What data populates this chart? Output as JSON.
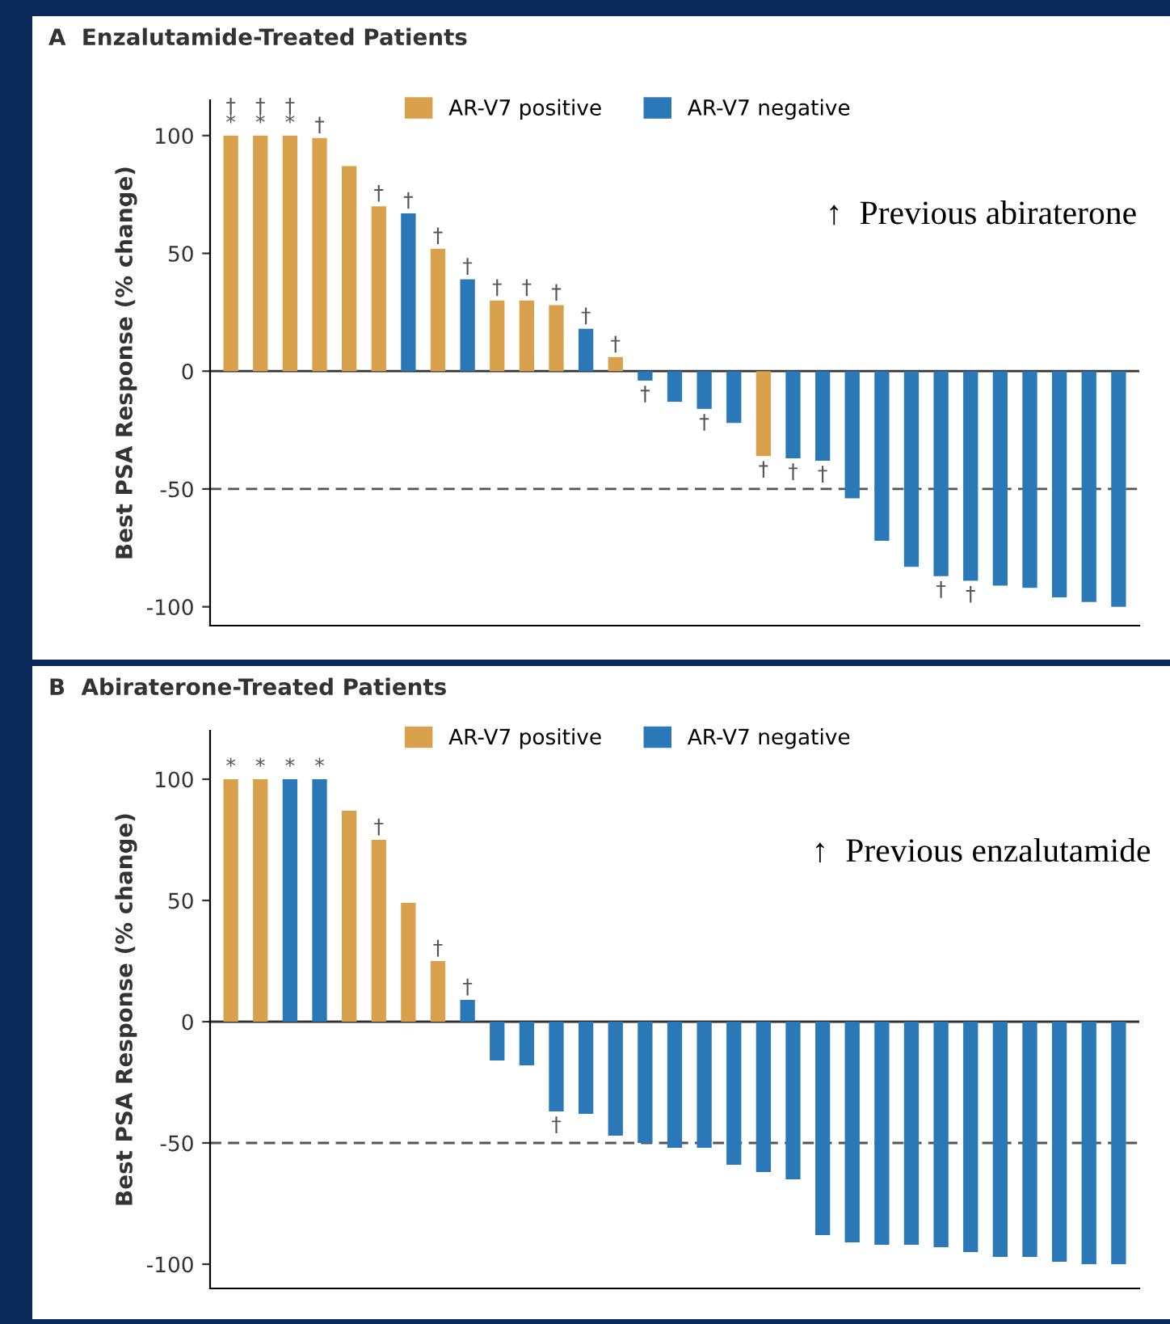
{
  "chart_data": [
    {
      "type": "bar",
      "title": "A  Enzalutamide-Treated Patients",
      "ylabel": "Best PSA Response (% change)",
      "categories": [
        null,
        null,
        null,
        null,
        null,
        null,
        null,
        null,
        null,
        null,
        null,
        null,
        null,
        null,
        null,
        null,
        null,
        null,
        null,
        null,
        null,
        null,
        null,
        null,
        null,
        null,
        null,
        null,
        null,
        null,
        null
      ],
      "series": [
        {
          "name": "AR-V7 positive",
          "color": "#d9a14b",
          "values": [
            100,
            100,
            100,
            99,
            87,
            70,
            null,
            52,
            null,
            30,
            30,
            28,
            null,
            6,
            null,
            null,
            null,
            null,
            -36,
            null,
            null,
            null,
            null,
            null,
            null,
            null,
            null,
            null,
            null,
            null,
            null
          ],
          "value_labels": [
            "†\n*",
            "†\n*",
            "†\n*",
            "†",
            null,
            "†",
            null,
            "†",
            null,
            "†",
            "†",
            "†",
            null,
            "†",
            null,
            null,
            null,
            null,
            "†",
            null,
            null,
            null,
            null,
            null,
            null,
            null,
            null,
            null,
            null,
            null,
            null
          ]
        },
        {
          "name": "AR-V7 negative",
          "color": "#2b78b8",
          "values": [
            null,
            null,
            null,
            null,
            null,
            null,
            67,
            null,
            39,
            null,
            null,
            null,
            18,
            null,
            -4,
            -13,
            -16,
            -22,
            null,
            -37,
            -38,
            -54,
            -72,
            -83,
            -87,
            -89,
            -91,
            -92,
            -96,
            -98,
            -100
          ],
          "value_labels": [
            null,
            null,
            null,
            null,
            null,
            null,
            "†",
            null,
            "†",
            null,
            null,
            null,
            "†",
            null,
            "†",
            null,
            "†",
            null,
            null,
            "†",
            "†",
            null,
            null,
            null,
            "†",
            "†",
            null,
            null,
            null,
            null,
            null
          ]
        }
      ],
      "ylim": [
        -108,
        115
      ],
      "yticks": [
        -100,
        -50,
        0,
        50,
        100
      ],
      "tick_labels": "y",
      "legend": "top",
      "grid": false,
      "ref_lines": [
        {
          "axis": "y",
          "value": 0,
          "line_style": "solid",
          "color": "#333333"
        },
        {
          "axis": "y",
          "value": -50,
          "line_style": "dashed",
          "color": "#555555"
        }
      ],
      "annotations": [
        "↑  Previous abiraterone"
      ]
    },
    {
      "type": "bar",
      "title": "B  Abiraterone-Treated Patients",
      "ylabel": "Best PSA Response (% change)",
      "categories": [
        null,
        null,
        null,
        null,
        null,
        null,
        null,
        null,
        null,
        null,
        null,
        null,
        null,
        null,
        null,
        null,
        null,
        null,
        null,
        null,
        null,
        null,
        null,
        null,
        null,
        null,
        null,
        null,
        null,
        null,
        null
      ],
      "series": [
        {
          "name": "AR-V7 positive",
          "color": "#d9a14b",
          "values": [
            100,
            100,
            null,
            null,
            87,
            75,
            49,
            25,
            null,
            null,
            null,
            null,
            null,
            null,
            null,
            null,
            null,
            null,
            null,
            null,
            null,
            null,
            null,
            null,
            null,
            null,
            null,
            null,
            null,
            null,
            null
          ],
          "value_labels": [
            "*",
            "*",
            null,
            null,
            null,
            "†",
            null,
            "†",
            null,
            null,
            null,
            null,
            null,
            null,
            null,
            null,
            null,
            null,
            null,
            null,
            null,
            null,
            null,
            null,
            null,
            null,
            null,
            null,
            null,
            null,
            null
          ]
        },
        {
          "name": "AR-V7 negative",
          "color": "#2b78b8",
          "values": [
            null,
            null,
            100,
            100,
            null,
            null,
            null,
            null,
            9,
            -16,
            -18,
            -37,
            -38,
            -47,
            -50,
            -52,
            -52,
            -59,
            -62,
            -65,
            -88,
            -91,
            -92,
            -92,
            -93,
            -95,
            -97,
            -97,
            -99,
            -100,
            -100
          ],
          "value_labels": [
            null,
            null,
            "*",
            "*",
            null,
            null,
            null,
            null,
            "†",
            null,
            null,
            "†",
            null,
            null,
            null,
            null,
            null,
            null,
            null,
            null,
            null,
            null,
            null,
            null,
            null,
            null,
            null,
            null,
            null,
            null,
            null
          ]
        }
      ],
      "ylim": [
        -110,
        120
      ],
      "yticks": [
        -100,
        -50,
        0,
        50,
        100
      ],
      "tick_labels": "y",
      "legend": "top",
      "grid": false,
      "ref_lines": [
        {
          "axis": "y",
          "value": 0,
          "line_style": "solid",
          "color": "#333333"
        },
        {
          "axis": "y",
          "value": -50,
          "line_style": "dashed",
          "color": "#555555"
        }
      ],
      "annotations": [
        "↑  Previous enzalutamide"
      ]
    }
  ]
}
